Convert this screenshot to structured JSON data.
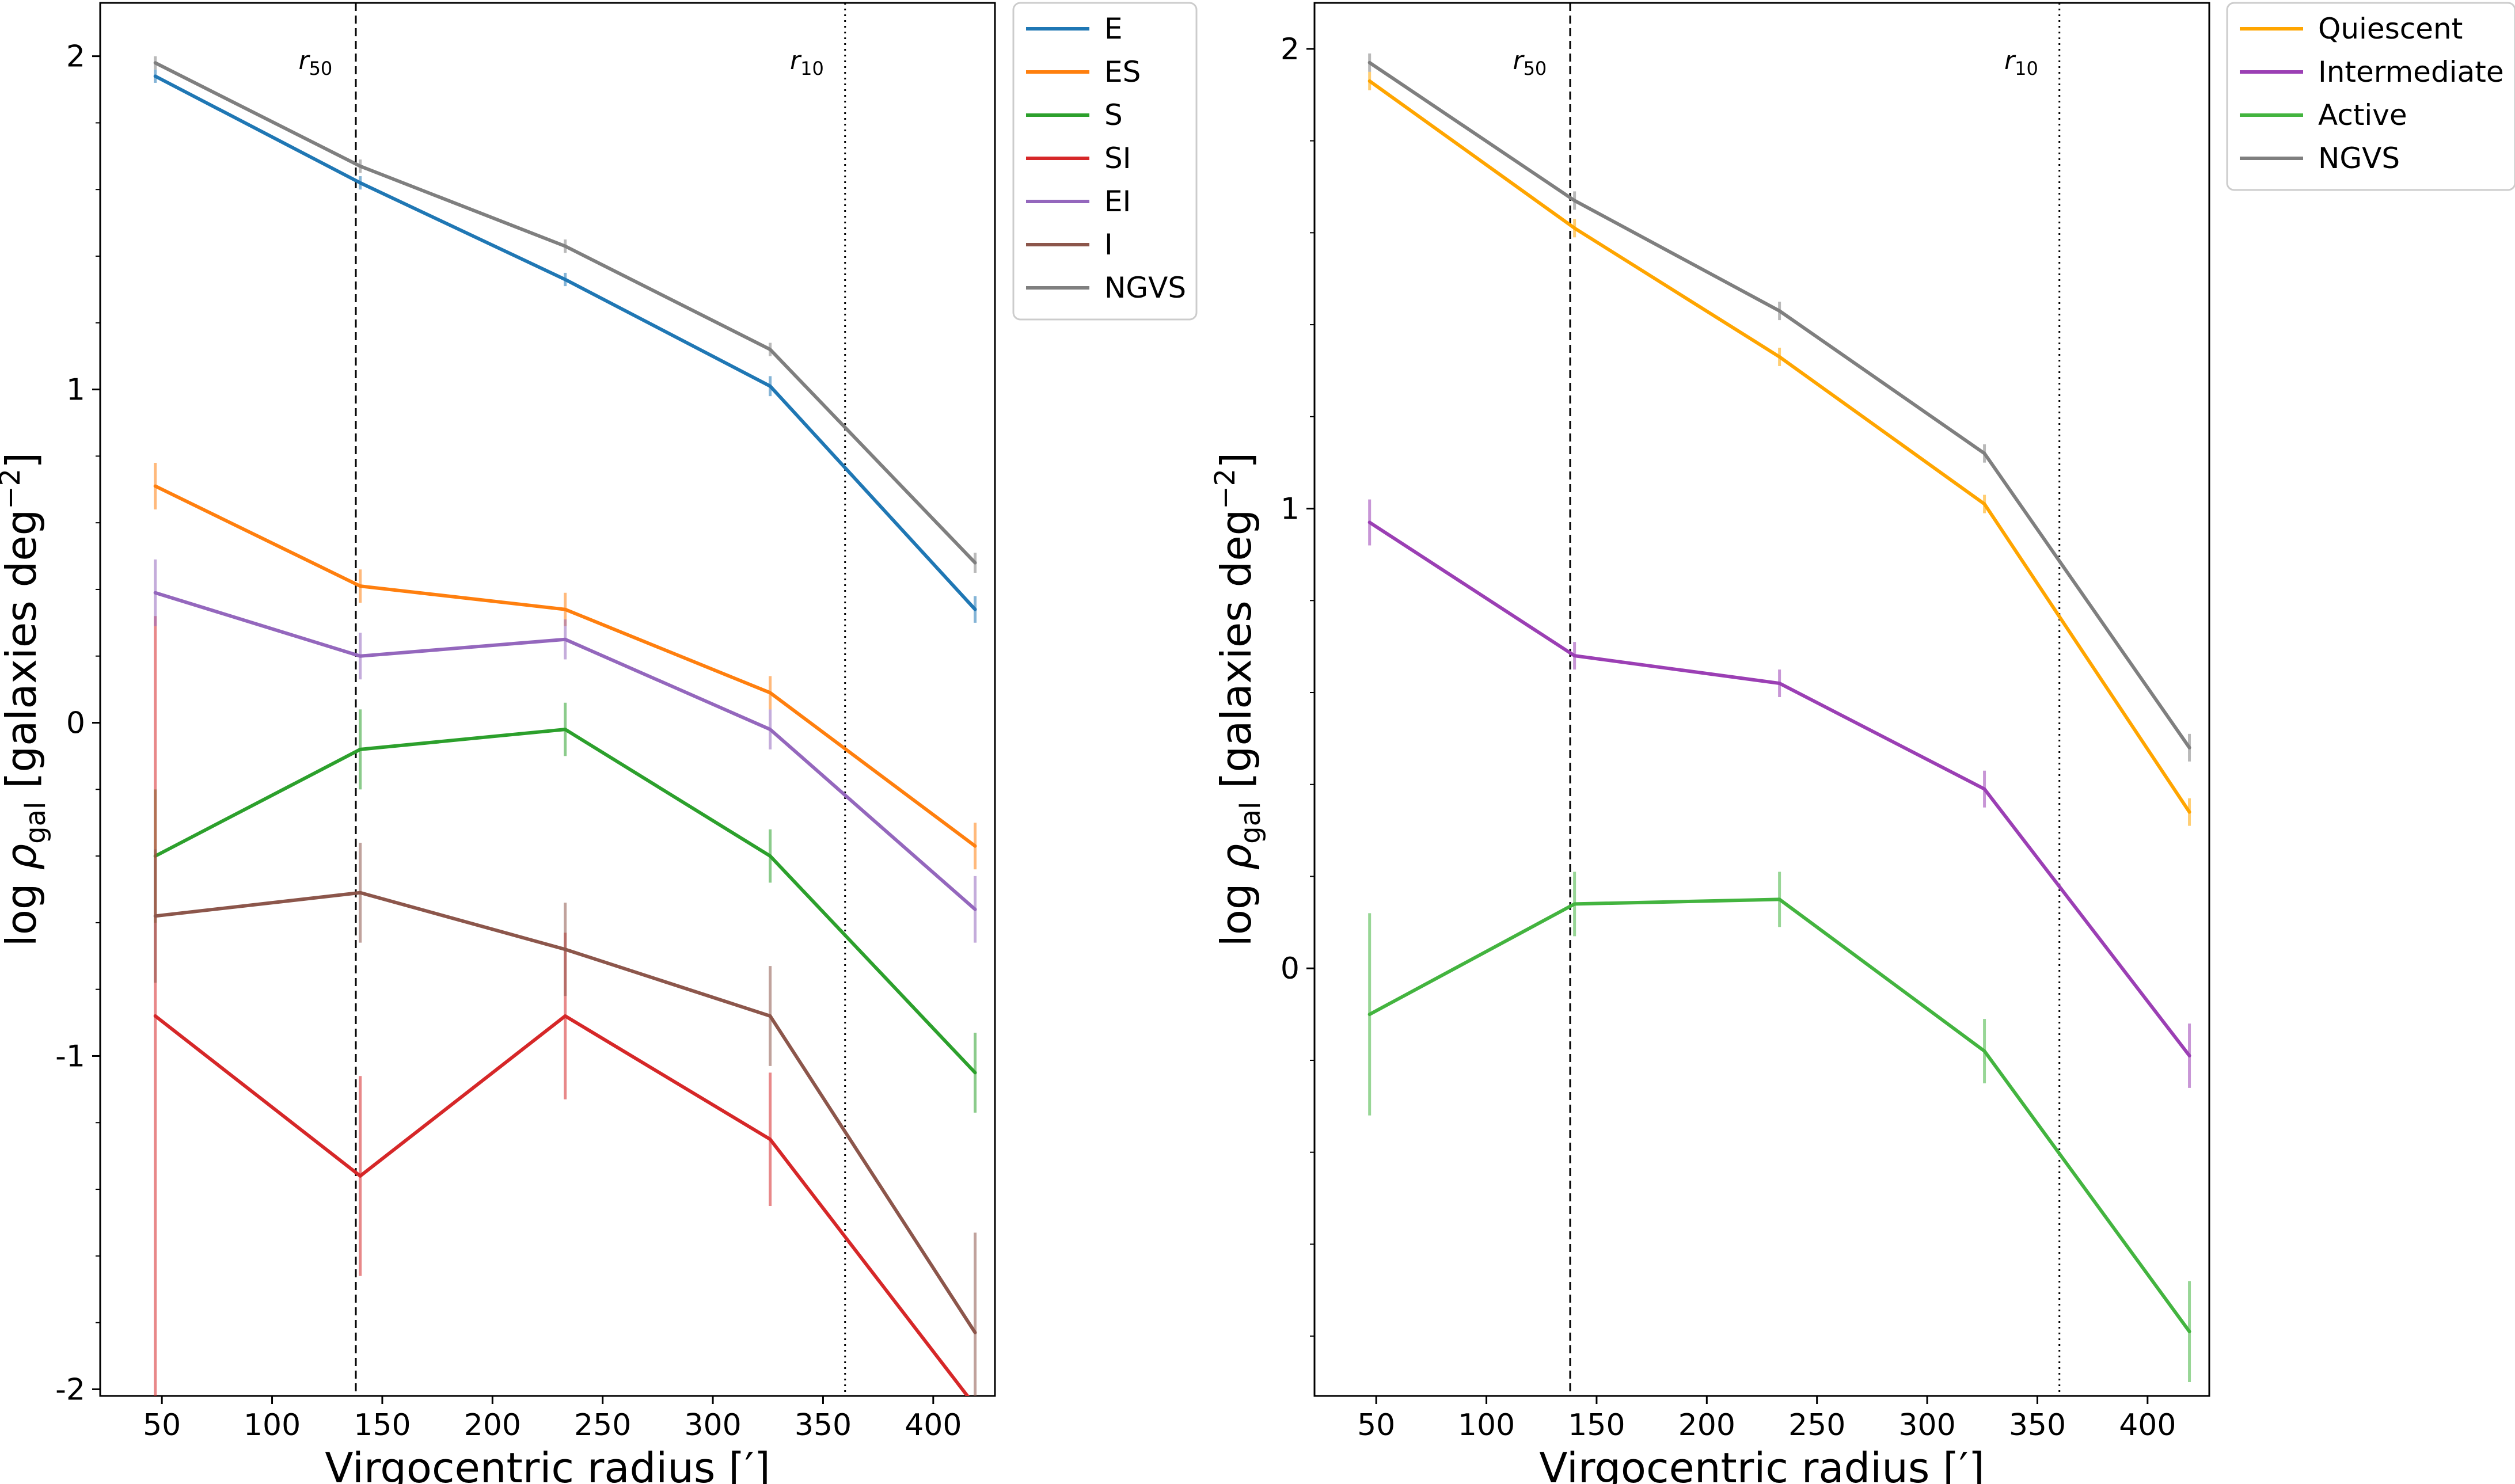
{
  "chart_data": [
    {
      "type": "line",
      "id": "morphology",
      "xlabel_prefix": "Virgocentric radius [",
      "xlabel_unit": "′",
      "xlabel_suffix": "]",
      "ylabel_prefix": "log ",
      "ylabel_rho": "ρ",
      "ylabel_sub": "gal",
      "ylabel_mid": " [galaxies deg",
      "ylabel_sup": "−2",
      "ylabel_end": "]",
      "xlim": [
        22,
        428
      ],
      "ylim": [
        -2.02,
        2.16
      ],
      "xticks": [
        50,
        100,
        150,
        200,
        250,
        300,
        350,
        400
      ],
      "xtick_labels": [
        "50",
        "100",
        "150",
        "200",
        "250",
        "300",
        "350",
        "400"
      ],
      "yticks": [
        -2,
        -1,
        0,
        1,
        2
      ],
      "ytick_labels": [
        "-2",
        "-1",
        "0",
        "1",
        "2"
      ],
      "vlines": [
        {
          "x": 138,
          "style": "dashed",
          "label_main": "r",
          "label_sub": "50",
          "label_x": 112
        },
        {
          "x": 360,
          "style": "dotted",
          "label_main": "r",
          "label_sub": "10",
          "label_x": 335
        }
      ],
      "x": [
        47,
        140,
        233,
        326,
        419
      ],
      "series": [
        {
          "name": "E",
          "color": "#1f77b4",
          "values": [
            1.94,
            1.62,
            1.33,
            1.01,
            0.34
          ],
          "err": [
            0.02,
            0.02,
            0.02,
            0.03,
            0.04
          ]
        },
        {
          "name": "ES",
          "color": "#ff7f0e",
          "values": [
            0.71,
            0.41,
            0.34,
            0.09,
            -0.37
          ],
          "err": [
            0.07,
            0.05,
            0.05,
            0.05,
            0.07
          ]
        },
        {
          "name": "S",
          "color": "#2ca02c",
          "values": [
            -0.4,
            -0.08,
            -0.02,
            -0.4,
            -1.05
          ],
          "err": [
            0.2,
            0.12,
            0.08,
            0.08,
            0.12
          ]
        },
        {
          "name": "SI",
          "color": "#d62728",
          "values": [
            -0.88,
            -1.36,
            -0.88,
            -1.25,
            -2.05
          ],
          "err": [
            1.2,
            0.3,
            0.25,
            0.2,
            0
          ]
        },
        {
          "name": "EI",
          "color": "#9467bd",
          "values": [
            0.39,
            0.2,
            0.25,
            -0.02,
            -0.56
          ],
          "err": [
            0.1,
            0.07,
            0.06,
            0.06,
            0.1
          ]
        },
        {
          "name": "I",
          "color": "#8c564b",
          "values": [
            -0.58,
            -0.51,
            -0.68,
            -0.88,
            -1.83
          ],
          "err": [
            0.2,
            0.15,
            0.14,
            0.15,
            0.3
          ]
        },
        {
          "name": "NGVS",
          "color": "#7f7f7f",
          "values": [
            1.98,
            1.67,
            1.43,
            1.12,
            0.48
          ],
          "err": [
            0.02,
            0.02,
            0.02,
            0.02,
            0.03
          ]
        }
      ]
    },
    {
      "type": "line",
      "id": "activity",
      "xlabel_prefix": "Virgocentric radius [",
      "xlabel_unit": "′",
      "xlabel_suffix": "]",
      "ylabel_prefix": "log ",
      "ylabel_rho": "ρ",
      "ylabel_sub": "gal",
      "ylabel_mid": " [galaxies deg",
      "ylabel_sup": "−2",
      "ylabel_end": "]",
      "xlim": [
        22,
        428
      ],
      "ylim": [
        -0.93,
        2.1
      ],
      "xticks": [
        50,
        100,
        150,
        200,
        250,
        300,
        350,
        400
      ],
      "xtick_labels": [
        "50",
        "100",
        "150",
        "200",
        "250",
        "300",
        "350",
        "400"
      ],
      "yticks": [
        0,
        1,
        2
      ],
      "ytick_labels": [
        "0",
        "1",
        "2"
      ],
      "vlines": [
        {
          "x": 138,
          "style": "dashed",
          "label_main": "r",
          "label_sub": "50",
          "label_x": 112
        },
        {
          "x": 360,
          "style": "dotted",
          "label_main": "r",
          "label_sub": "10",
          "label_x": 335
        }
      ],
      "x": [
        47,
        140,
        233,
        326,
        419
      ],
      "series": [
        {
          "name": "Quiescent",
          "color": "#ffa500",
          "values": [
            1.93,
            1.61,
            1.33,
            1.01,
            0.34
          ],
          "err": [
            0.02,
            0.02,
            0.02,
            0.02,
            0.03
          ]
        },
        {
          "name": "Intermediate",
          "color": "#9b3fb4",
          "values": [
            0.97,
            0.68,
            0.62,
            0.39,
            -0.19
          ],
          "err": [
            0.05,
            0.03,
            0.03,
            0.04,
            0.07
          ]
        },
        {
          "name": "Active",
          "color": "#43b43f",
          "values": [
            -0.1,
            0.14,
            0.15,
            -0.18,
            -0.79
          ],
          "err": [
            0.22,
            0.07,
            0.06,
            0.07,
            0.11
          ]
        },
        {
          "name": "NGVS",
          "color": "#7f7f7f",
          "values": [
            1.97,
            1.67,
            1.43,
            1.12,
            0.48
          ],
          "err": [
            0.02,
            0.02,
            0.02,
            0.02,
            0.03
          ]
        }
      ]
    }
  ]
}
